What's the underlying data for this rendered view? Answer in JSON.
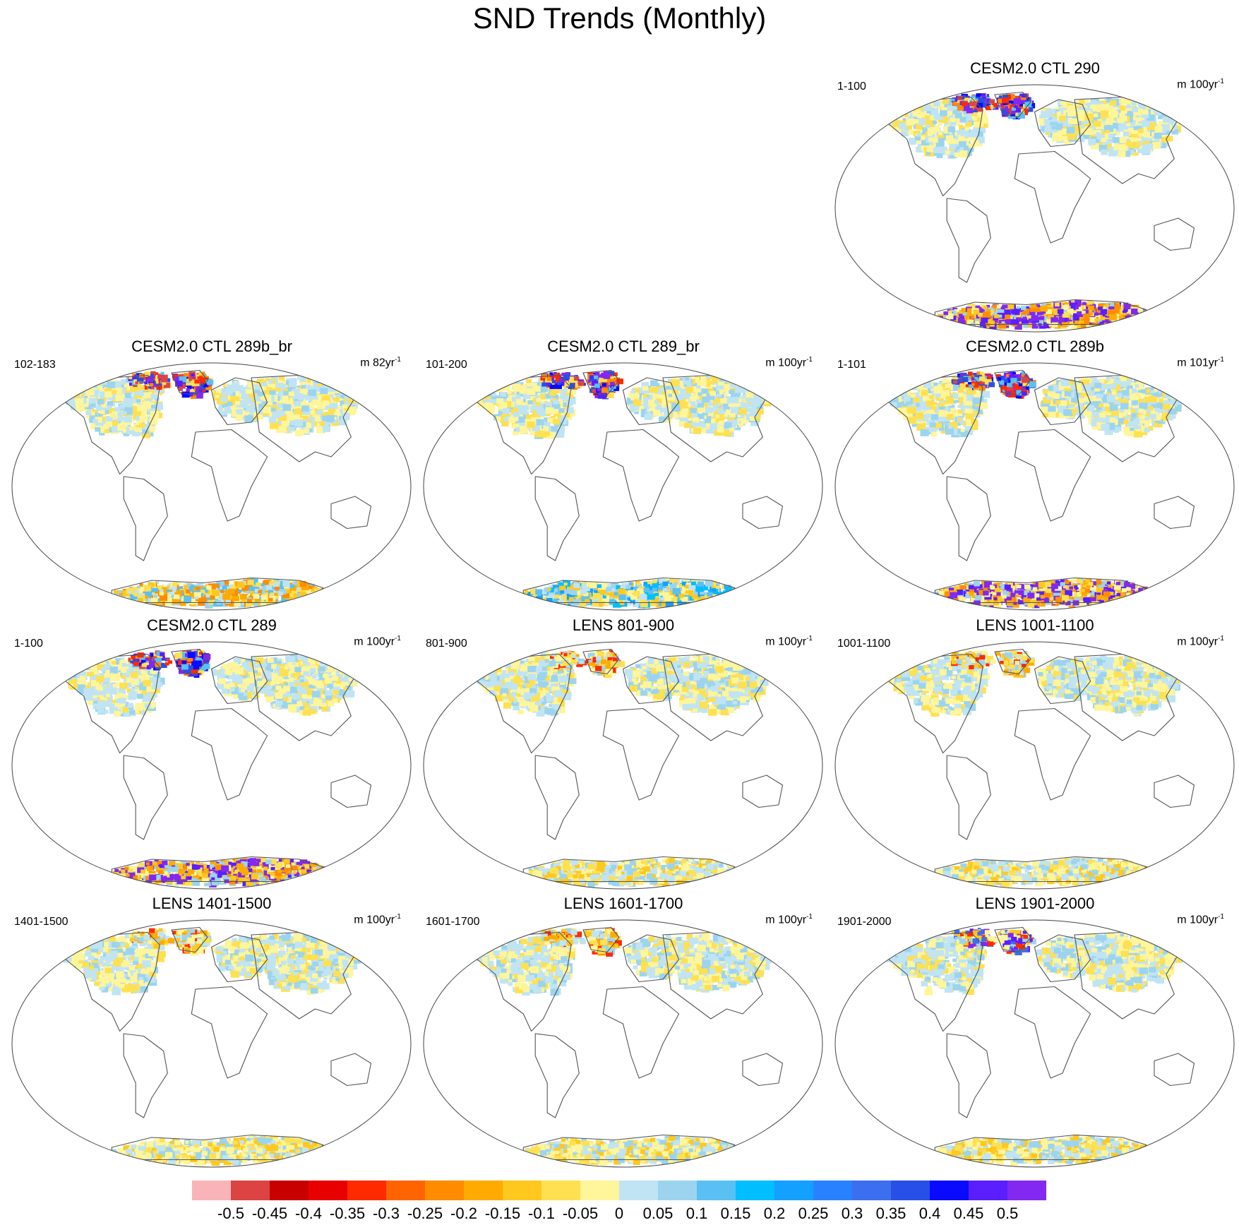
{
  "title": "SND Trends (Monthly)",
  "chart_data": {
    "type": "heatmap",
    "projection": "global map (Winkel Tripel-like oval)",
    "variable": "SND trend",
    "panels": [
      {
        "id": "p290",
        "title": "CESM2.0 CTL 290",
        "period": "1-100",
        "units": "m 100yr",
        "units_exp": "-1",
        "slot": 3,
        "arctic": "strong",
        "ant": "strong-pos"
      },
      {
        "id": "p289b_br",
        "title": "CESM2.0 CTL 289b_br",
        "period": "102-183",
        "units": "m 82yr",
        "units_exp": "-1",
        "slot": 4,
        "arctic": "strong",
        "ant": "mixed"
      },
      {
        "id": "p289_br",
        "title": "CESM2.0 CTL 289_br",
        "period": "101-200",
        "units": "m 100yr",
        "units_exp": "-1",
        "slot": 5,
        "arctic": "strong",
        "ant": "mixed-blue"
      },
      {
        "id": "p289b",
        "title": "CESM2.0 CTL 289b",
        "period": "1-101",
        "units": "m 101yr",
        "units_exp": "-1",
        "slot": 6,
        "arctic": "strong",
        "ant": "strong-pos"
      },
      {
        "id": "p289",
        "title": "CESM2.0 CTL 289",
        "period": "1-100",
        "units": "m 100yr",
        "units_exp": "-1",
        "slot": 7,
        "arctic": "strong",
        "ant": "strong-pos"
      },
      {
        "id": "l801",
        "title": "LENS 801-900",
        "period": "801-900",
        "units": "m 100yr",
        "units_exp": "-1",
        "slot": 8,
        "arctic": "weak",
        "ant": "weak"
      },
      {
        "id": "l1001",
        "title": "LENS 1001-1100",
        "period": "1001-1100",
        "units": "m 100yr",
        "units_exp": "-1",
        "slot": 9,
        "arctic": "weak",
        "ant": "weak"
      },
      {
        "id": "l1401",
        "title": "LENS 1401-1500",
        "period": "1401-1500",
        "units": "m 100yr",
        "units_exp": "-1",
        "slot": 10,
        "arctic": "weak",
        "ant": "weak"
      },
      {
        "id": "l1601",
        "title": "LENS 1601-1700",
        "period": "1601-1700",
        "units": "m 100yr",
        "units_exp": "-1",
        "slot": 11,
        "arctic": "weak",
        "ant": "weak"
      },
      {
        "id": "l1901",
        "title": "LENS 1901-2000",
        "period": "1901-2000",
        "units": "m 100yr",
        "units_exp": "-1",
        "slot": 12,
        "arctic": "mid",
        "ant": "weak"
      }
    ],
    "colorbar": {
      "labels": [
        "-0.5",
        "-0.45",
        "-0.4",
        "-0.35",
        "-0.3",
        "-0.25",
        "-0.2",
        "-0.15",
        "-0.1",
        "-0.05",
        "0",
        "0.05",
        "0.1",
        "0.15",
        "0.2",
        "0.25",
        "0.3",
        "0.35",
        "0.4",
        "0.45",
        "0.5"
      ],
      "colors": [
        "#f8b4b8",
        "#dc4444",
        "#c80000",
        "#e80000",
        "#ff2a00",
        "#ff6400",
        "#ff8c00",
        "#ffaa00",
        "#ffc81e",
        "#ffe050",
        "#fff59a",
        "#c0e4f4",
        "#9cd4f0",
        "#5ac0f4",
        "#00beff",
        "#14a0ff",
        "#2882ff",
        "#3c6ef0",
        "#2850e6",
        "#0a0aff",
        "#5a1eff",
        "#8228f0"
      ]
    }
  }
}
